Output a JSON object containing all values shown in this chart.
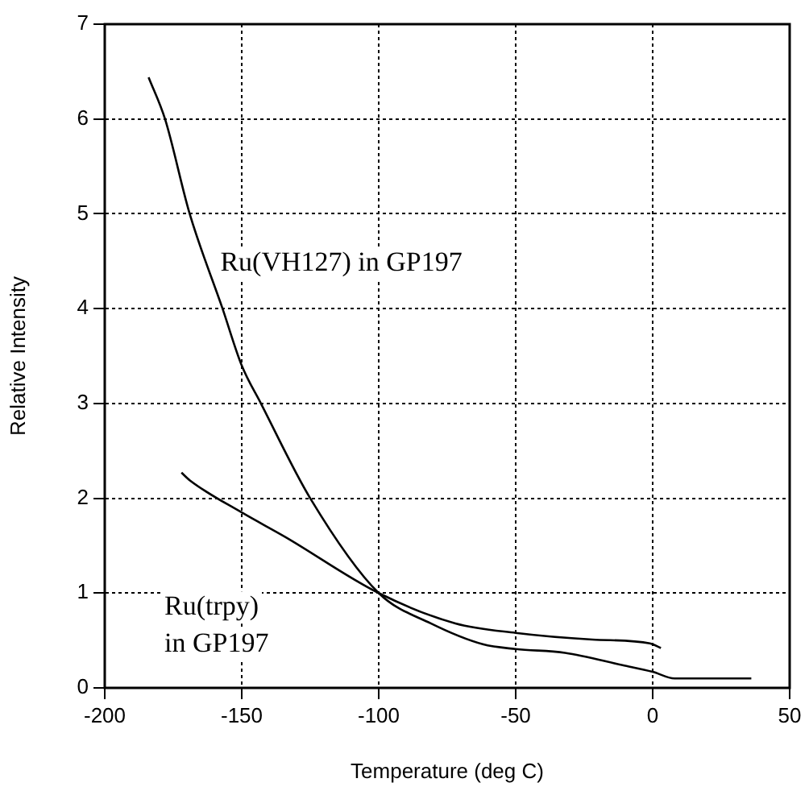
{
  "chart_data": {
    "type": "line",
    "xlabel": "Temperature (deg C)",
    "ylabel": "Relative Intensity",
    "xlim": [
      -200,
      50
    ],
    "xticks": [
      -200,
      -150,
      -100,
      -50,
      0,
      50
    ],
    "ylim": [
      0,
      7
    ],
    "yticks": [
      0,
      1,
      2,
      3,
      4,
      5,
      6,
      7
    ],
    "grid": true,
    "legend": false,
    "marker": "none",
    "line_style": "solid",
    "series": [
      {
        "name": "Ru(VH127) in GP197",
        "color": "#000000",
        "x": [
          -184,
          -178,
          -169,
          -157,
          -150,
          -143,
          -125,
          -100,
          -81,
          -62,
          -50,
          -32,
          -11,
          0,
          8,
          36
        ],
        "values": [
          6.44,
          6.0,
          5.0,
          4.0,
          3.4,
          3.0,
          2.0,
          1.0,
          0.68,
          0.46,
          0.41,
          0.37,
          0.24,
          0.17,
          0.1,
          0.1
        ]
      },
      {
        "name": "Ru(trpy) in GP197",
        "color": "#000000",
        "x": [
          -172,
          -169,
          -150,
          -134,
          -100,
          -72,
          -50,
          -22,
          -1,
          3
        ],
        "values": [
          2.27,
          2.19,
          1.85,
          1.59,
          1.0,
          0.68,
          0.58,
          0.51,
          0.47,
          0.42
        ]
      }
    ]
  }
}
